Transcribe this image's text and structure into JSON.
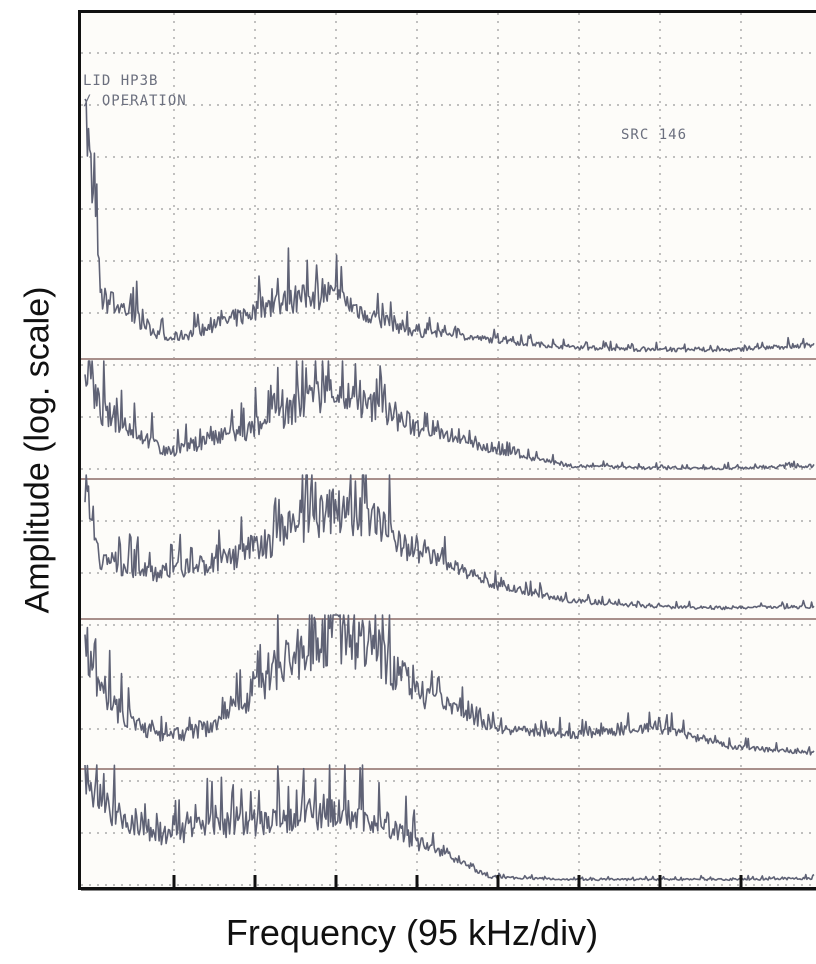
{
  "chart_data": {
    "type": "line",
    "xlabel": "Frequency (95 kHz/div)",
    "ylabel": "Amplitude (log. scale)",
    "x_divisions": 9,
    "y_scale": "log",
    "grid": true,
    "annotations": [
      "LID HP3B",
      "/ OPERATION",
      "SRC 146"
    ],
    "series": [
      {
        "trace": 1,
        "x": [
          0,
          0.2,
          0.5,
          1.0,
          1.5,
          2.0,
          2.5,
          3.0,
          3.5,
          4.0,
          5.0,
          6.0,
          7.0,
          8.0,
          9.0
        ],
        "y": [
          0.95,
          0.22,
          0.18,
          0.06,
          0.1,
          0.16,
          0.21,
          0.24,
          0.16,
          0.1,
          0.06,
          0.03,
          0.02,
          0.02,
          0.04
        ]
      },
      {
        "trace": 2,
        "x": [
          0,
          0.2,
          0.5,
          1.0,
          1.5,
          2.0,
          2.5,
          3.0,
          3.5,
          4.0,
          5.0,
          6.0,
          7.0,
          8.0,
          9.0
        ],
        "y": [
          0.95,
          0.55,
          0.45,
          0.2,
          0.3,
          0.38,
          0.55,
          0.75,
          0.6,
          0.45,
          0.22,
          0.08,
          0.06,
          0.06,
          0.08
        ]
      },
      {
        "trace": 3,
        "x": [
          0,
          0.2,
          0.5,
          1.0,
          1.5,
          2.0,
          2.5,
          3.0,
          3.5,
          4.0,
          5.0,
          6.0,
          7.0,
          8.0,
          9.0
        ],
        "y": [
          0.95,
          0.4,
          0.35,
          0.3,
          0.35,
          0.45,
          0.6,
          0.75,
          0.7,
          0.5,
          0.22,
          0.1,
          0.06,
          0.05,
          0.06
        ]
      },
      {
        "trace": 4,
        "x": [
          0,
          0.2,
          0.5,
          1.0,
          1.5,
          2.0,
          2.5,
          3.0,
          3.5,
          4.0,
          5.0,
          6.0,
          7.0,
          8.0,
          9.0
        ],
        "y": [
          0.85,
          0.5,
          0.3,
          0.18,
          0.25,
          0.45,
          0.7,
          0.85,
          0.8,
          0.55,
          0.25,
          0.2,
          0.25,
          0.12,
          0.08
        ]
      },
      {
        "trace": 5,
        "x": [
          0,
          0.2,
          0.5,
          1.0,
          1.5,
          2.0,
          2.5,
          3.0,
          3.5,
          4.0,
          5.0,
          6.0,
          7.0,
          8.0,
          9.0
        ],
        "y": [
          0.85,
          0.7,
          0.55,
          0.4,
          0.5,
          0.5,
          0.55,
          0.6,
          0.55,
          0.4,
          0.05,
          0.03,
          0.03,
          0.03,
          0.04
        ]
      }
    ]
  },
  "colors": {
    "trace": "#5f6275",
    "baseline": "#a88f8b",
    "grid": "#9a9a9a",
    "frame": "#111111"
  }
}
